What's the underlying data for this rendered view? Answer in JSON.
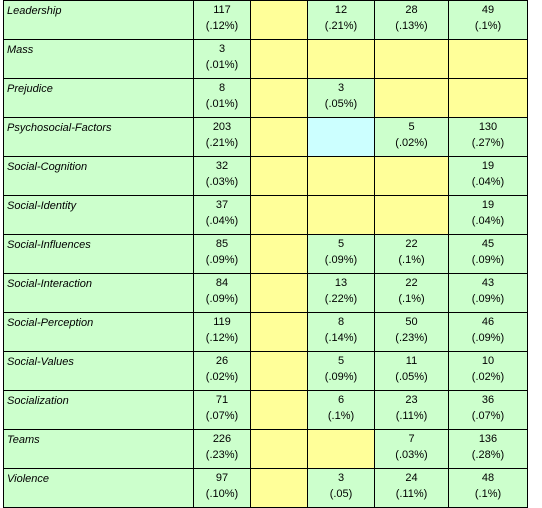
{
  "colors": {
    "green": "#ccffcc",
    "yellow": "#ffff99",
    "cyan": "#ccffff"
  },
  "rows": [
    {
      "label": "Leadership",
      "cells": [
        {
          "n": "117",
          "p": "(.12%)",
          "fill": "green"
        },
        {
          "n": "",
          "p": "",
          "fill": "yellow"
        },
        {
          "n": "12",
          "p": "(.21%)",
          "fill": "green"
        },
        {
          "n": "28",
          "p": "(.13%)",
          "fill": "green"
        },
        {
          "n": "49",
          "p": "(.1%)",
          "fill": "green"
        }
      ]
    },
    {
      "label": "Mass",
      "cells": [
        {
          "n": "3",
          "p": "(.01%)",
          "fill": "green"
        },
        {
          "n": "",
          "p": "",
          "fill": "yellow"
        },
        {
          "n": "",
          "p": "",
          "fill": "yellow"
        },
        {
          "n": "",
          "p": "",
          "fill": "yellow"
        },
        {
          "n": "",
          "p": "",
          "fill": "yellow"
        }
      ]
    },
    {
      "label": "Prejudice",
      "cells": [
        {
          "n": "8",
          "p": "(.01%)",
          "fill": "green"
        },
        {
          "n": "",
          "p": "",
          "fill": "yellow"
        },
        {
          "n": "3",
          "p": "(.05%)",
          "fill": "green"
        },
        {
          "n": "",
          "p": "",
          "fill": "yellow"
        },
        {
          "n": "",
          "p": "",
          "fill": "yellow"
        }
      ]
    },
    {
      "label": "Psychosocial-Factors",
      "cells": [
        {
          "n": "203",
          "p": "(.21%)",
          "fill": "green"
        },
        {
          "n": "",
          "p": "",
          "fill": "yellow"
        },
        {
          "n": "",
          "p": "",
          "fill": "cyan"
        },
        {
          "n": "5",
          "p": "(.02%)",
          "fill": "green"
        },
        {
          "n": "130",
          "p": "(.27%)",
          "fill": "green"
        }
      ]
    },
    {
      "label": "Social-Cognition",
      "cells": [
        {
          "n": "32",
          "p": "(.03%)",
          "fill": "green"
        },
        {
          "n": "",
          "p": "",
          "fill": "yellow"
        },
        {
          "n": "",
          "p": "",
          "fill": "yellow"
        },
        {
          "n": "",
          "p": "",
          "fill": "yellow"
        },
        {
          "n": "19",
          "p": "(.04%)",
          "fill": "green"
        }
      ]
    },
    {
      "label": "Social-Identity",
      "cells": [
        {
          "n": "37",
          "p": "(.04%)",
          "fill": "green"
        },
        {
          "n": "",
          "p": "",
          "fill": "yellow"
        },
        {
          "n": "",
          "p": "",
          "fill": "yellow"
        },
        {
          "n": "",
          "p": "",
          "fill": "yellow"
        },
        {
          "n": "19",
          "p": "(.04%)",
          "fill": "green"
        }
      ]
    },
    {
      "label": "Social-Influences",
      "cells": [
        {
          "n": "85",
          "p": "(.09%)",
          "fill": "green"
        },
        {
          "n": "",
          "p": "",
          "fill": "yellow"
        },
        {
          "n": "5",
          "p": "(.09%)",
          "fill": "green"
        },
        {
          "n": "22",
          "p": "(.1%)",
          "fill": "green"
        },
        {
          "n": "45",
          "p": "(.09%)",
          "fill": "green"
        }
      ]
    },
    {
      "label": "Social-Interaction",
      "cells": [
        {
          "n": "84",
          "p": "(.09%)",
          "fill": "green"
        },
        {
          "n": "",
          "p": "",
          "fill": "yellow"
        },
        {
          "n": "13",
          "p": "(.22%)",
          "fill": "green"
        },
        {
          "n": "22",
          "p": "(.1%)",
          "fill": "green"
        },
        {
          "n": "43",
          "p": "(.09%)",
          "fill": "green"
        }
      ]
    },
    {
      "label": "Social-Perception",
      "cells": [
        {
          "n": "119",
          "p": "(.12%)",
          "fill": "green"
        },
        {
          "n": "",
          "p": "",
          "fill": "yellow"
        },
        {
          "n": "8",
          "p": "(.14%)",
          "fill": "green"
        },
        {
          "n": "50",
          "p": "(.23%)",
          "fill": "green"
        },
        {
          "n": "46",
          "p": "(.09%)",
          "fill": "green"
        }
      ]
    },
    {
      "label": "Social-Values",
      "cells": [
        {
          "n": "26",
          "p": "(.02%)",
          "fill": "green"
        },
        {
          "n": "",
          "p": "",
          "fill": "yellow"
        },
        {
          "n": "5",
          "p": "(.09%)",
          "fill": "green"
        },
        {
          "n": "11",
          "p": "(.05%)",
          "fill": "green"
        },
        {
          "n": "10",
          "p": "(.02%)",
          "fill": "green"
        }
      ]
    },
    {
      "label": "Socialization",
      "cells": [
        {
          "n": "71",
          "p": "(.07%)",
          "fill": "green"
        },
        {
          "n": "",
          "p": "",
          "fill": "yellow"
        },
        {
          "n": "6",
          "p": "(.1%)",
          "fill": "green"
        },
        {
          "n": "23",
          "p": "(.11%)",
          "fill": "green"
        },
        {
          "n": "36",
          "p": "(.07%)",
          "fill": "green"
        }
      ]
    },
    {
      "label": "Teams",
      "cells": [
        {
          "n": "226",
          "p": "(.23%)",
          "fill": "green"
        },
        {
          "n": "",
          "p": "",
          "fill": "yellow"
        },
        {
          "n": "",
          "p": "",
          "fill": "yellow"
        },
        {
          "n": "7",
          "p": "(.03%)",
          "fill": "green"
        },
        {
          "n": "136",
          "p": "(.28%)",
          "fill": "green"
        }
      ]
    },
    {
      "label": "Violence",
      "cells": [
        {
          "n": "97",
          "p": "(.10%)",
          "fill": "green"
        },
        {
          "n": "",
          "p": "",
          "fill": "yellow"
        },
        {
          "n": "3",
          "p": "(.05)",
          "fill": "green"
        },
        {
          "n": "24",
          "p": "(.11%)",
          "fill": "green"
        },
        {
          "n": "48",
          "p": "(.1%)",
          "fill": "green"
        }
      ]
    }
  ]
}
